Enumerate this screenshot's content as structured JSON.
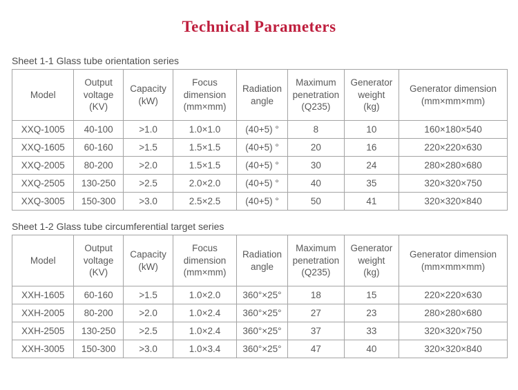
{
  "title": "Technical Parameters",
  "colors": {
    "title_accent": "#be1e3d",
    "table_text": "#595959",
    "table_border": "#a3a3a3"
  },
  "tables": [
    {
      "caption": "Sheet 1-1 Glass tube orientation series",
      "headers": [
        "Model",
        "Output\nvoltage\n(KV)",
        "Capacity\n(kW)",
        "Focus\ndimension\n(mm×mm)",
        "Radiation\nangle",
        "Maximum\npenetration\n(Q235)",
        "Generator\nweight\n(kg)",
        "Generator dimension\n(mm×mm×mm)"
      ],
      "rows": [
        [
          "XXQ-1005",
          "40-100",
          ">1.0",
          "1.0×1.0",
          "(40+5) °",
          "8",
          "10",
          "160×180×540"
        ],
        [
          "XXQ-1605",
          "60-160",
          ">1.5",
          "1.5×1.5",
          "(40+5) °",
          "20",
          "16",
          "220×220×630"
        ],
        [
          "XXQ-2005",
          "80-200",
          ">2.0",
          "1.5×1.5",
          "(40+5) °",
          "30",
          "24",
          "280×280×680"
        ],
        [
          "XXQ-2505",
          "130-250",
          ">2.5",
          "2.0×2.0",
          "(40+5) °",
          "40",
          "35",
          "320×320×750"
        ],
        [
          "XXQ-3005",
          "150-300",
          ">3.0",
          "2.5×2.5",
          "(40+5) °",
          "50",
          "41",
          "320×320×840"
        ]
      ]
    },
    {
      "caption": "Sheet 1-2 Glass tube circumferential target series",
      "headers": [
        "Model",
        "Output\nvoltage\n(KV)",
        "Capacity\n(kW)",
        "Focus\ndimension\n(mm×mm)",
        "Radiation\nangle",
        "Maximum\npenetration\n(Q235)",
        "Generator\nweight\n(kg)",
        "Generator dimension\n(mm×mm×mm)"
      ],
      "rows": [
        [
          "XXH-1605",
          "60-160",
          ">1.5",
          "1.0×2.0",
          "360°×25°",
          "18",
          "15",
          "220×220×630"
        ],
        [
          "XXH-2005",
          "80-200",
          ">2.0",
          "1.0×2.4",
          "360°×25°",
          "27",
          "23",
          "280×280×680"
        ],
        [
          "XXH-2505",
          "130-250",
          ">2.5",
          "1.0×2.4",
          "360°×25°",
          "37",
          "33",
          "320×320×750"
        ],
        [
          "XXH-3005",
          "150-300",
          ">3.0",
          "1.0×3.4",
          "360°×25°",
          "47",
          "40",
          "320×320×840"
        ]
      ]
    }
  ]
}
